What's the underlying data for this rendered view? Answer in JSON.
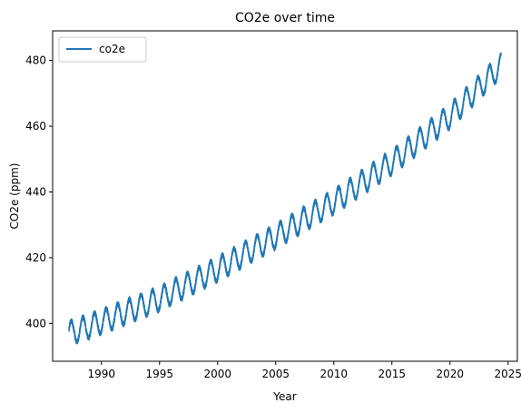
{
  "chart_data": {
    "type": "line",
    "title": "CO2e over time",
    "xlabel": "Year",
    "ylabel": "CO2e (ppm)",
    "xlim": [
      1985.8,
      2025.8
    ],
    "ylim": [
      388.5,
      489.0
    ],
    "xticks": [
      1990,
      1995,
      2000,
      2005,
      2010,
      2015,
      2020,
      2025
    ],
    "yticks": [
      400,
      420,
      440,
      460,
      480
    ],
    "grid": false,
    "legend": {
      "placement": "top-left",
      "entries": [
        "co2e"
      ]
    },
    "series": [
      {
        "name": "co2e",
        "color": "#1f77b4",
        "trend": {
          "x": [
            1987.2,
            1990,
            1995,
            2000,
            2005,
            2010,
            2015,
            2020,
            2024.4
          ],
          "y": [
            397.0,
            400.5,
            407.5,
            416.5,
            426.5,
            437.0,
            449.0,
            463.0,
            478.5
          ]
        },
        "seasonal_amplitude_ppm": 3.5,
        "observed_min": 392.0,
        "observed_max": 484.5
      }
    ]
  }
}
